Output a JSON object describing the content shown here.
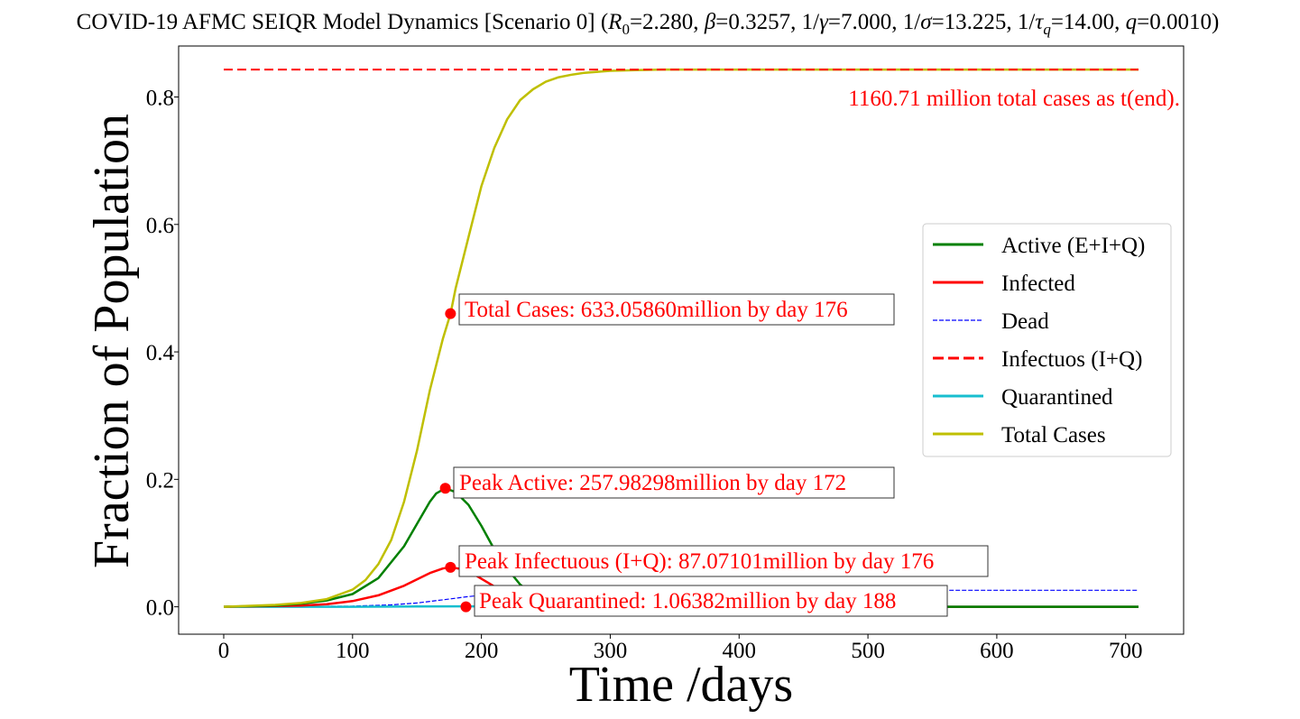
{
  "chart_data": {
    "type": "line",
    "title_parts": {
      "main": "COVID-19 AFMC SEIQR Model Dynamics [Scenario 0] (",
      "r0_sym": "R",
      "r0_sub": "0",
      "r0_val": "=2.280, ",
      "beta_sym": "β",
      "beta_val": "=0.3257, 1/",
      "gamma_sym": "γ",
      "gamma_val": "=7.000, 1/",
      "sigma_sym": "σ",
      "sigma_val": "=13.225, 1/",
      "tau_sym": "τ",
      "tau_sub": "q",
      "tau_val": "=14.00, ",
      "q_sym": "q",
      "q_val": "=0.0010)"
    },
    "xlabel": "Time /days",
    "ylabel": "Fraction of Population",
    "xlim": [
      -35,
      745
    ],
    "ylim": [
      -0.043,
      0.88
    ],
    "xticks": [
      "0",
      "100",
      "200",
      "300",
      "400",
      "500",
      "600",
      "700"
    ],
    "yticks": [
      "0.0",
      "0.2",
      "0.4",
      "0.6",
      "0.8"
    ],
    "grid": false,
    "legend_position": "center-right",
    "legend": [
      {
        "label": "Active (E+I+Q)",
        "color": "#008000",
        "style": "solid"
      },
      {
        "label": "Infected",
        "color": "#ff0000",
        "style": "solid"
      },
      {
        "label": "Dead",
        "color": "#0000ff",
        "style": "dashed-thin"
      },
      {
        "label": "Infectuos (I+Q)",
        "color": "#ff0000",
        "style": "dashed"
      },
      {
        "label": "Quarantined",
        "color": "#17becf",
        "style": "solid"
      },
      {
        "label": "Total Cases",
        "color": "#bfbf00",
        "style": "solid"
      }
    ],
    "series": [
      {
        "name": "Total Cases",
        "color": "#bfbf00",
        "x": [
          0,
          40,
          60,
          80,
          100,
          110,
          120,
          130,
          140,
          150,
          160,
          170,
          176,
          180,
          190,
          200,
          210,
          220,
          230,
          240,
          250,
          260,
          270,
          280,
          300,
          320,
          340,
          380,
          450,
          600,
          710
        ],
        "y": [
          0,
          0.003,
          0.006,
          0.012,
          0.027,
          0.042,
          0.067,
          0.105,
          0.165,
          0.245,
          0.34,
          0.42,
          0.46,
          0.5,
          0.58,
          0.66,
          0.72,
          0.765,
          0.795,
          0.812,
          0.824,
          0.831,
          0.835,
          0.838,
          0.841,
          0.842,
          0.843,
          0.843,
          0.843,
          0.843,
          0.843
        ]
      },
      {
        "name": "Active (E+I+Q)",
        "color": "#008000",
        "x": [
          0,
          40,
          60,
          80,
          100,
          120,
          140,
          150,
          160,
          165,
          172,
          180,
          190,
          200,
          210,
          220,
          230,
          240,
          250,
          260,
          280,
          300,
          350,
          450,
          710
        ],
        "y": [
          0,
          0.002,
          0.005,
          0.01,
          0.02,
          0.045,
          0.095,
          0.13,
          0.165,
          0.178,
          0.186,
          0.18,
          0.16,
          0.127,
          0.09,
          0.06,
          0.035,
          0.02,
          0.01,
          0.005,
          0.002,
          0.001,
          0,
          0,
          0
        ]
      },
      {
        "name": "Infected",
        "color": "#ff0000",
        "x": [
          0,
          60,
          80,
          100,
          120,
          140,
          150,
          160,
          170,
          176,
          185,
          195,
          205,
          215,
          225,
          235,
          245,
          260,
          280,
          320,
          710
        ],
        "y": [
          0,
          0.002,
          0.004,
          0.009,
          0.018,
          0.033,
          0.043,
          0.053,
          0.06,
          0.062,
          0.059,
          0.05,
          0.038,
          0.026,
          0.016,
          0.009,
          0.005,
          0.002,
          0.001,
          0,
          0
        ]
      },
      {
        "name": "Dead",
        "color": "#0000ff",
        "x": [
          0,
          100,
          130,
          150,
          170,
          190,
          210,
          230,
          250,
          270,
          300,
          350,
          710
        ],
        "y": [
          0,
          0.001,
          0.003,
          0.006,
          0.011,
          0.016,
          0.02,
          0.023,
          0.025,
          0.026,
          0.026,
          0.026,
          0.026
        ]
      },
      {
        "name": "Infectuos (I+Q)",
        "color": "#ff0000",
        "x": [
          0,
          710
        ],
        "y": [
          0.843,
          0.843
        ]
      },
      {
        "name": "Quarantined",
        "color": "#17becf",
        "x": [
          0,
          100,
          150,
          188,
          230,
          300,
          710
        ],
        "y": [
          0,
          0,
          0.0005,
          0.0008,
          0.0004,
          0,
          0
        ]
      }
    ],
    "markers": [
      {
        "x": 176,
        "y": 0.46,
        "color": "#ff0000"
      },
      {
        "x": 172,
        "y": 0.186,
        "color": "#ff0000"
      },
      {
        "x": 176,
        "y": 0.062,
        "color": "#ff0000"
      },
      {
        "x": 188,
        "y": 0.0,
        "color": "#ff0000"
      }
    ],
    "annotations": [
      {
        "text": "Total Cases: 633.05860million by day 176",
        "boxed": true
      },
      {
        "text": "Peak Active: 257.98298million by day 172",
        "boxed": true
      },
      {
        "text": "Peak Infectuous (I+Q): 87.07101million by day 176",
        "boxed": true
      },
      {
        "text": "Peak Quarantined: 1.06382million by day 188",
        "boxed": true
      },
      {
        "text": "1160.71 million total cases as t(end).",
        "boxed": false
      }
    ]
  }
}
